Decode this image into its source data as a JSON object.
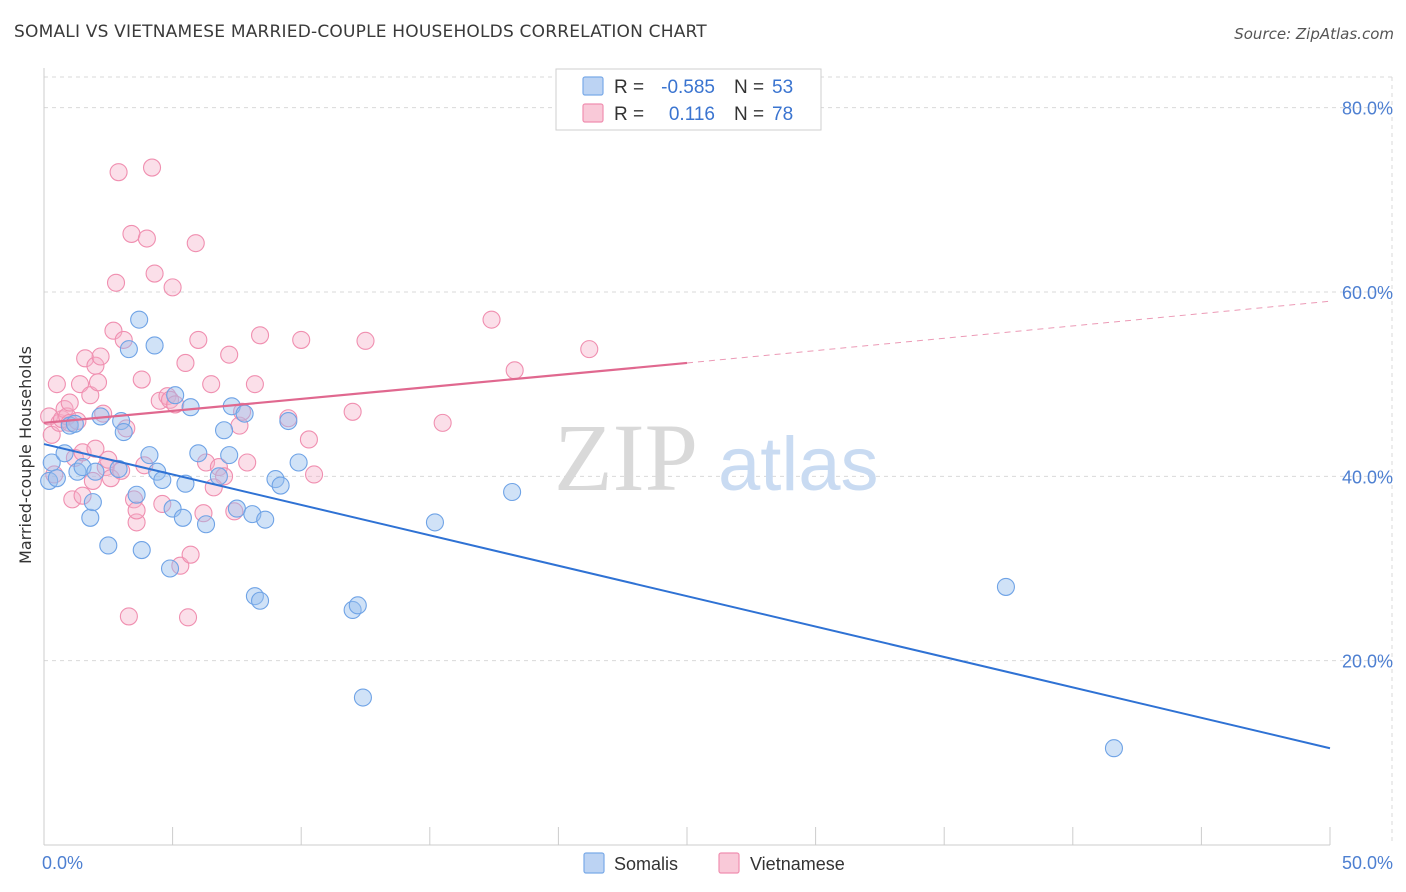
{
  "header": {
    "title": "SOMALI VS VIETNAMESE MARRIED-COUPLE HOUSEHOLDS CORRELATION CHART",
    "source": "Source: ZipAtlas.com"
  },
  "watermark": {
    "part1": "ZIP",
    "part2": "atlas"
  },
  "legend_box": {
    "rows": [
      {
        "r_label": "R = ",
        "r_value": "-0.585",
        "n_label": "N = ",
        "n_value": "53",
        "color": "#7aaae8"
      },
      {
        "r_label": "R = ",
        "r_value": "0.116",
        "n_label": "N = ",
        "n_value": "78",
        "color": "#f08fb0"
      }
    ]
  },
  "chart_data": {
    "type": "scatter",
    "title": "SOMALI VS VIETNAMESE MARRIED-COUPLE HOUSEHOLDS CORRELATION CHART",
    "xlabel": "",
    "ylabel": "Married-couple Households",
    "xlim": [
      0,
      50
    ],
    "ylim": [
      0,
      83
    ],
    "x_tick_labels": [
      "0.0%",
      "50.0%"
    ],
    "y_ticks": [
      20,
      40,
      60,
      80
    ],
    "y_tick_labels": [
      "20.0%",
      "40.0%",
      "60.0%",
      "80.0%"
    ],
    "grid": true,
    "legend_position": "bottom",
    "colors": {
      "somali": "#5b9be0",
      "somali_line": "#2f72d4",
      "vietnamese": "#f39bb8",
      "vietnamese_line": "#e0688f",
      "tick_label": "#4d7fd1"
    },
    "series": [
      {
        "name": "Somalis",
        "r": -0.585,
        "n": 53,
        "trend": {
          "x0": 0,
          "y0": 43.5,
          "x1": 50,
          "y1": 10.5
        },
        "points": [
          [
            0.2,
            39.5
          ],
          [
            0.3,
            41.5
          ],
          [
            0.5,
            39.8
          ],
          [
            0.8,
            42.5
          ],
          [
            1.0,
            45.5
          ],
          [
            1.2,
            45.7
          ],
          [
            1.3,
            40.5
          ],
          [
            1.5,
            41.0
          ],
          [
            1.8,
            35.5
          ],
          [
            1.9,
            37.2
          ],
          [
            2.2,
            46.5
          ],
          [
            2.5,
            32.5
          ],
          [
            2.9,
            40.8
          ],
          [
            3.0,
            46.0
          ],
          [
            3.1,
            44.8
          ],
          [
            3.3,
            53.8
          ],
          [
            3.6,
            38.0
          ],
          [
            3.7,
            57.0
          ],
          [
            3.8,
            32.0
          ],
          [
            4.1,
            42.3
          ],
          [
            4.3,
            54.2
          ],
          [
            4.4,
            40.5
          ],
          [
            4.6,
            39.6
          ],
          [
            4.9,
            30.0
          ],
          [
            5.0,
            36.5
          ],
          [
            5.1,
            48.8
          ],
          [
            5.4,
            35.5
          ],
          [
            5.5,
            39.2
          ],
          [
            5.7,
            47.5
          ],
          [
            6.0,
            42.5
          ],
          [
            6.3,
            34.8
          ],
          [
            7.0,
            45.0
          ],
          [
            7.2,
            42.3
          ],
          [
            7.3,
            47.6
          ],
          [
            7.5,
            36.5
          ],
          [
            7.8,
            46.8
          ],
          [
            8.1,
            35.9
          ],
          [
            8.2,
            27.0
          ],
          [
            8.4,
            26.5
          ],
          [
            8.6,
            35.3
          ],
          [
            9.0,
            39.7
          ],
          [
            9.2,
            39.0
          ],
          [
            9.5,
            46.0
          ],
          [
            9.9,
            41.5
          ],
          [
            12.0,
            25.5
          ],
          [
            12.2,
            26.0
          ],
          [
            12.4,
            16.0
          ],
          [
            15.2,
            35.0
          ],
          [
            18.2,
            38.3
          ],
          [
            37.4,
            28.0
          ],
          [
            41.6,
            10.5
          ],
          [
            2.0,
            40.5
          ],
          [
            6.8,
            40.0
          ]
        ]
      },
      {
        "name": "Vietnamese",
        "r": 0.116,
        "n": 78,
        "trend": {
          "x0": 0,
          "y0": 45.8,
          "x1": 25,
          "y1": 52.3,
          "dash_x1": 50,
          "dash_y1": 59.0
        },
        "points": [
          [
            0.2,
            46.5
          ],
          [
            0.3,
            44.5
          ],
          [
            0.5,
            50.0
          ],
          [
            0.6,
            45.8
          ],
          [
            0.7,
            46.2
          ],
          [
            0.8,
            47.3
          ],
          [
            0.9,
            46.5
          ],
          [
            1.0,
            45.8
          ],
          [
            1.0,
            48.0
          ],
          [
            1.1,
            37.5
          ],
          [
            1.2,
            42.0
          ],
          [
            1.3,
            46.0
          ],
          [
            1.4,
            50.0
          ],
          [
            1.5,
            42.6
          ],
          [
            1.6,
            52.8
          ],
          [
            1.8,
            48.8
          ],
          [
            1.9,
            39.5
          ],
          [
            2.0,
            43.0
          ],
          [
            2.0,
            52.0
          ],
          [
            2.1,
            50.2
          ],
          [
            2.2,
            53.0
          ],
          [
            2.4,
            41.0
          ],
          [
            2.5,
            41.8
          ],
          [
            2.6,
            39.8
          ],
          [
            2.7,
            55.8
          ],
          [
            2.8,
            61.0
          ],
          [
            2.9,
            73.0
          ],
          [
            3.0,
            40.6
          ],
          [
            3.1,
            54.8
          ],
          [
            3.2,
            45.2
          ],
          [
            3.3,
            24.8
          ],
          [
            3.4,
            66.3
          ],
          [
            3.5,
            37.5
          ],
          [
            3.6,
            35.0
          ],
          [
            3.6,
            36.3
          ],
          [
            3.8,
            50.5
          ],
          [
            3.9,
            41.2
          ],
          [
            4.0,
            65.8
          ],
          [
            4.2,
            73.5
          ],
          [
            4.3,
            62.0
          ],
          [
            4.5,
            48.2
          ],
          [
            4.6,
            37.0
          ],
          [
            4.8,
            48.7
          ],
          [
            4.9,
            48.3
          ],
          [
            5.0,
            60.5
          ],
          [
            5.1,
            47.8
          ],
          [
            5.3,
            30.3
          ],
          [
            5.5,
            52.3
          ],
          [
            5.6,
            24.7
          ],
          [
            5.7,
            31.5
          ],
          [
            5.9,
            65.3
          ],
          [
            6.0,
            54.8
          ],
          [
            6.2,
            36.0
          ],
          [
            6.3,
            41.5
          ],
          [
            6.5,
            50.0
          ],
          [
            6.8,
            41.0
          ],
          [
            7.0,
            40.0
          ],
          [
            7.2,
            53.2
          ],
          [
            7.4,
            36.2
          ],
          [
            7.6,
            45.5
          ],
          [
            7.7,
            47.0
          ],
          [
            7.9,
            41.5
          ],
          [
            8.2,
            50.0
          ],
          [
            8.4,
            55.3
          ],
          [
            9.5,
            46.3
          ],
          [
            10.0,
            54.8
          ],
          [
            10.3,
            44.0
          ],
          [
            10.5,
            40.2
          ],
          [
            12.0,
            47.0
          ],
          [
            12.5,
            54.7
          ],
          [
            15.5,
            45.8
          ],
          [
            17.4,
            57.0
          ],
          [
            18.3,
            51.5
          ],
          [
            21.2,
            53.8
          ],
          [
            1.5,
            37.9
          ],
          [
            2.3,
            46.8
          ],
          [
            0.4,
            40.2
          ],
          [
            6.6,
            38.8
          ]
        ]
      }
    ]
  }
}
